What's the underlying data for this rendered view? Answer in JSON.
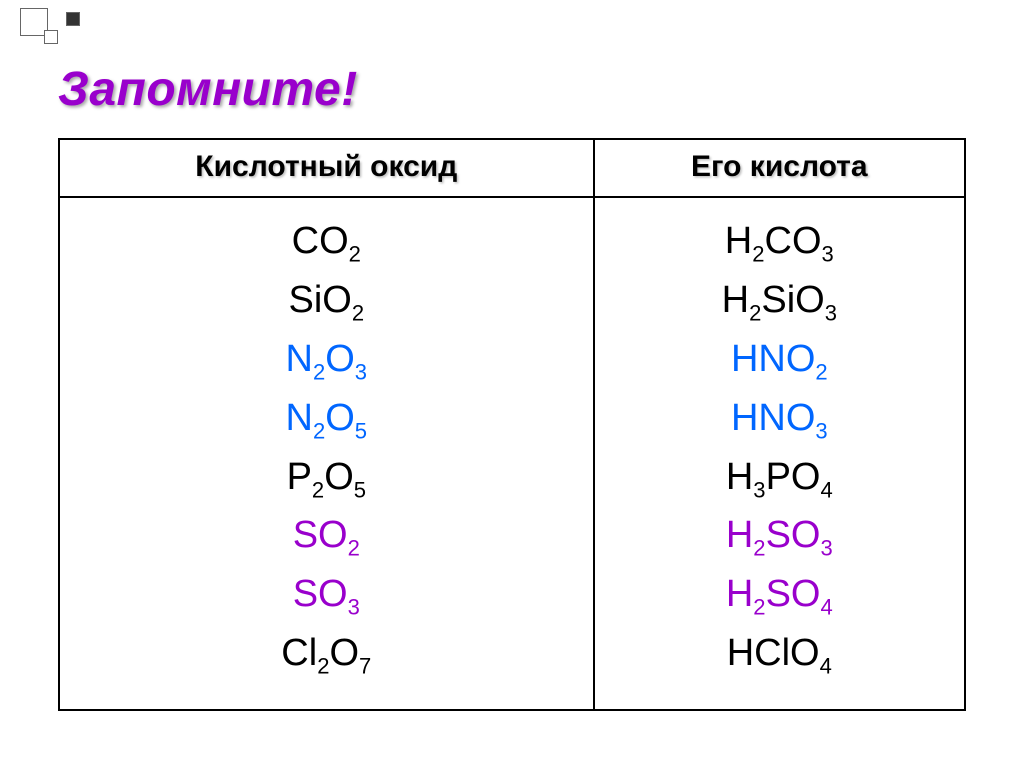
{
  "title": "Запомните!",
  "headers": {
    "left": "Кислотный оксид",
    "right": "Его кислота"
  },
  "rows": [
    {
      "oxide": "CO_2",
      "acid": "H_2CO_3",
      "color": "#000000"
    },
    {
      "oxide": "SiO_2",
      "acid": "H_2SiO_3",
      "color": "#000000"
    },
    {
      "oxide": "N_2O_3",
      "acid": "HNO_2",
      "color": "#0066ff"
    },
    {
      "oxide": "N_2O_5",
      "acid": "HNO_3",
      "color": "#0066ff"
    },
    {
      "oxide": "P_2O_5",
      "acid": "H_3PO_4",
      "color": "#000000"
    },
    {
      "oxide": "SO_2",
      "acid": "H_2SO_3",
      "color": "#9900cc"
    },
    {
      "oxide": "SO_3",
      "acid": "H_2SO_4",
      "color": "#9900cc"
    },
    {
      "oxide": "Cl_2O_7",
      "acid": "HClO_4",
      "color": "#000000"
    }
  ],
  "styling": {
    "page_bg": "#ffffff",
    "title_color": "#9900cc",
    "title_fontsize": 48,
    "header_fontsize": 30,
    "cell_fontsize": 38,
    "border_color": "#000000",
    "colors_used": [
      "#000000",
      "#0066ff",
      "#9900cc"
    ],
    "font_family": "Arial"
  }
}
